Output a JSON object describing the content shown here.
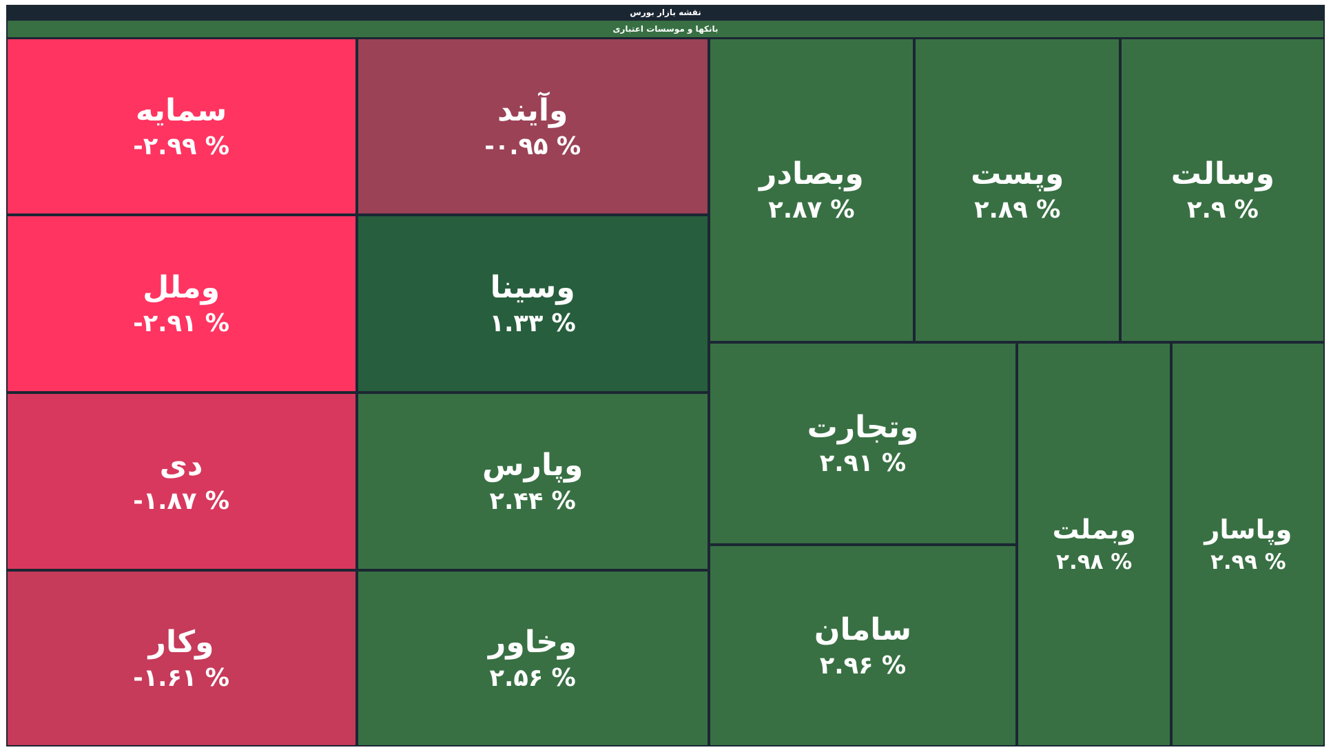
{
  "chart_data": {
    "type": "treemap",
    "title": "نقشه بازار بورس",
    "subtitle": "بانکها و موسسات اعتباری",
    "categories": [
      "سمایه",
      "وملل",
      "دی",
      "وکار",
      "وآیند",
      "وسینا",
      "وپارس",
      "وخاور",
      "وبصادر",
      "وپست",
      "وسالت",
      "وتجارت",
      "سامان",
      "وبملت",
      "وپاسار"
    ],
    "values": [
      -2.99,
      -2.91,
      -1.87,
      -1.61,
      -0.95,
      1.33,
      2.44,
      2.56,
      2.87,
      2.89,
      2.9,
      2.91,
      2.96,
      2.98,
      2.99
    ],
    "value_labels": [
      "-۲.۹۹ %",
      "-۲.۹۱ %",
      "-۱.۸۷ %",
      "-۱.۶۱ %",
      "-۰.۹۵ %",
      "۱.۳۳ %",
      "۲.۴۴ %",
      "۲.۵۶ %",
      "۲.۸۷ %",
      "۲.۸۹ %",
      "۲.۹ %",
      "۲.۹۱ %",
      "۲.۹۶ %",
      "۲.۹۸ %",
      "۲.۹۹ %"
    ],
    "colors": [
      "#ff3461",
      "#ff3461",
      "#d8385d",
      "#c63a5a",
      "#9b4256",
      "#275e3d",
      "#387043",
      "#387043",
      "#387043",
      "#387043",
      "#387043",
      "#387043",
      "#387043",
      "#387043",
      "#387043"
    ]
  }
}
